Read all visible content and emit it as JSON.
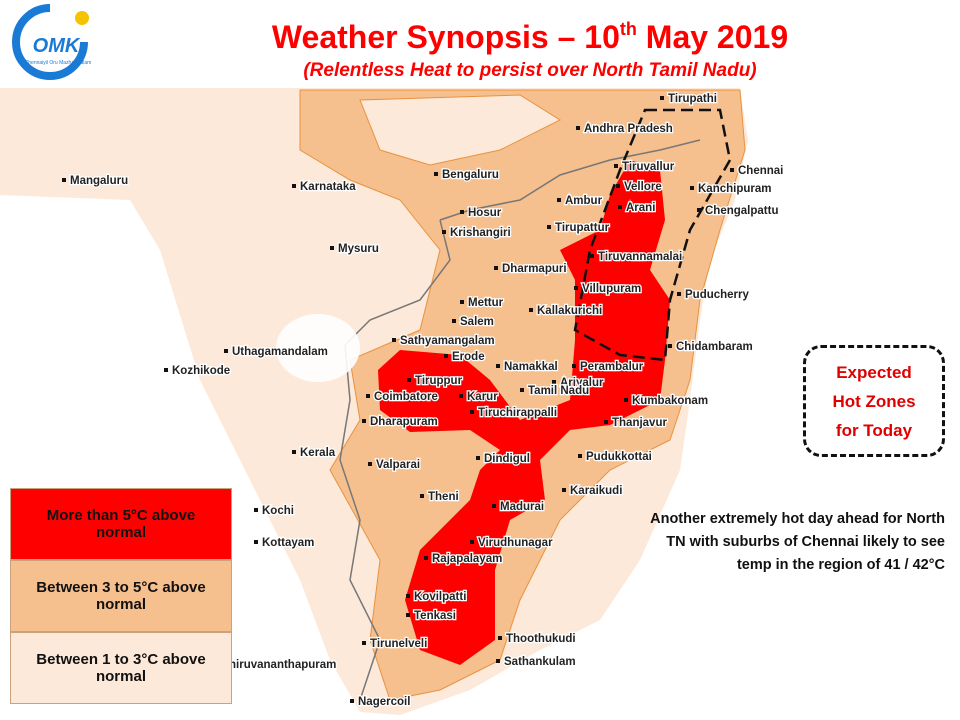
{
  "header": {
    "title_parts": [
      "Weather Synopsis – 10",
      "th",
      " May 2019"
    ],
    "subtitle": "(Relentless Heat to persist over North Tamil Nadu)",
    "logo": {
      "text": "OMK",
      "tagline": "Chennaiyil Oru Mazhaikaalam"
    }
  },
  "places": [
    "Tirupathi",
    "Andhra Pradesh",
    "Tiruvallur",
    "Chennai",
    "Bengaluru",
    "Mangaluru",
    "Karnataka",
    "Vellore",
    "Kanchipuram",
    "Hosur",
    "Ambur",
    "Arani",
    "Chengalpattu",
    "Krishangiri",
    "Tirupattur",
    "Tiruvannamalai",
    "Mysuru",
    "Dharmapuri",
    "Villupuram",
    "Puducherry",
    "Mettur",
    "Kallakurichi",
    "Salem",
    "Sathyamangalam",
    "Chidambaram",
    "Uthagamandalam",
    "Erode",
    "Perambalur",
    "Kozhikode",
    "Namakkal",
    "Tiruppur",
    "Ariyalur",
    "Tamil Nadu",
    "Coimbatore",
    "Karur",
    "Kumbakonam",
    "Tiruchirappalli",
    "Dharapuram",
    "Thanjavur",
    "Kerala",
    "Dindigul",
    "Pudukkottai",
    "Valparai",
    "Karaikudi",
    "Theni",
    "Madurai",
    "Kochi",
    "Virudhunagar",
    "Kottayam",
    "Rajapalayam",
    "Kovilpatti",
    "Tenkasi",
    "Thoothukudi",
    "Tirunelveli",
    "Sathankulam",
    "Thiruvananthapuram",
    "Nagercoil"
  ],
  "legend": [
    {
      "label": "More than 5°C above normal",
      "color": "#ff0000"
    },
    {
      "label": "Between 3 to 5°C above normal",
      "color": "#f6bf8e"
    },
    {
      "label": "Between 1 to 3°C above normal",
      "color": "#fde9d9"
    }
  ],
  "callout": "Expected Hot Zones for Today",
  "note": "Another extremely hot day ahead for North TN with suburbs of Chennai likely to see temp in the region of 41 / 42°C"
}
